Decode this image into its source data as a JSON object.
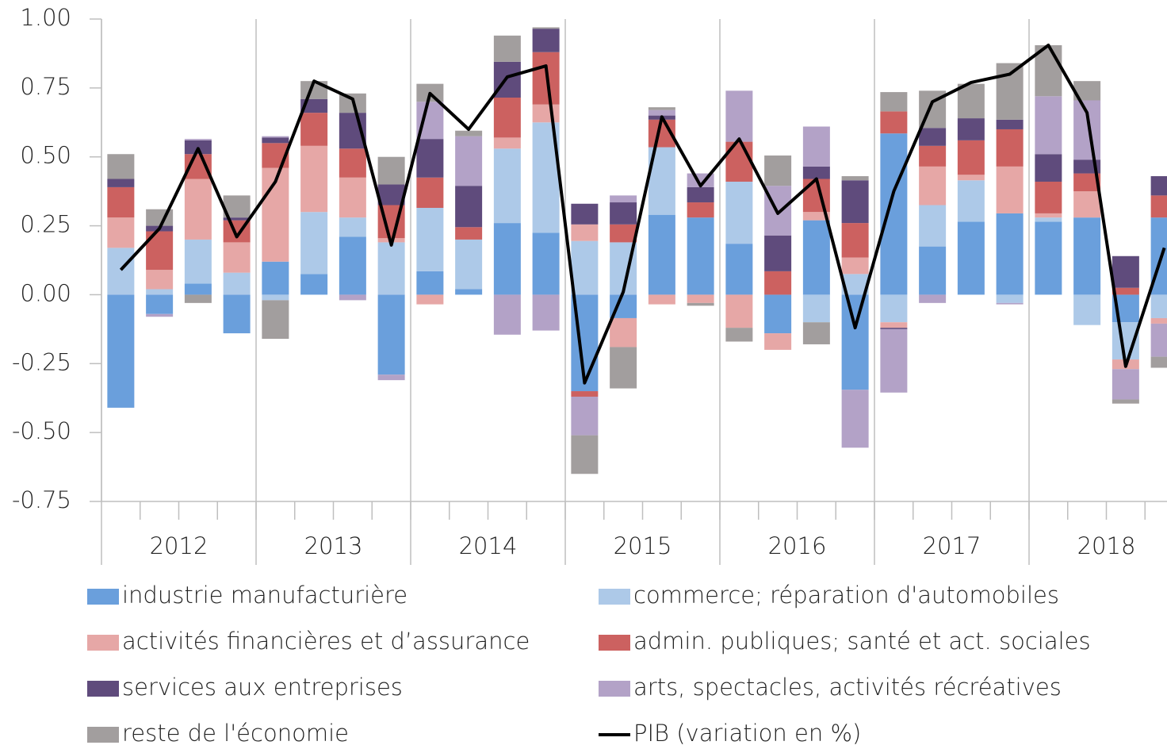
{
  "chart_data": {
    "type": "bar",
    "stacked": true,
    "categories": [
      null,
      null,
      null,
      null,
      null,
      null,
      null,
      null,
      null,
      null,
      null,
      null,
      null,
      null,
      null,
      null,
      null,
      null,
      null,
      null,
      null,
      null,
      null,
      null,
      null,
      null,
      null,
      null
    ],
    "year_labels": [
      "2012",
      "2013",
      "2014",
      "2015",
      "2016",
      "2017",
      "2018"
    ],
    "ylim": [
      -0.75,
      1.0
    ],
    "yticks": [
      {
        "value": 1.0,
        "label": "1.00"
      },
      {
        "value": 0.75,
        "label": "0.75"
      },
      {
        "value": 0.5,
        "label": "0.50"
      },
      {
        "value": 0.25,
        "label": "0.25"
      },
      {
        "value": 0,
        "label": "0.00"
      },
      {
        "value": -0.25,
        "label": "-0.25"
      },
      {
        "value": -0.5,
        "label": "-0.50"
      },
      {
        "value": -0.75,
        "label": "-0.75"
      }
    ],
    "series": [
      {
        "name": "industrie manufacturière",
        "color": "#6a9fdc",
        "values": [
          -0.41,
          -0.07,
          0.04,
          -0.14,
          0.12,
          0.075,
          0.21,
          -0.29,
          0.085,
          0.02,
          0.26,
          0.225,
          -0.35,
          -0.085,
          0.29,
          0.28,
          0.185,
          -0.14,
          0.27,
          -0.345,
          0.585,
          0.175,
          0.265,
          0.295,
          0.265,
          0.28,
          -0.1,
          0.28
        ]
      },
      {
        "name": "commerce; réparation d'automobiles",
        "color": "#adc9e8",
        "values": [
          0.17,
          0.02,
          0.16,
          0.08,
          -0.02,
          0.225,
          0.07,
          0.19,
          0.23,
          0.18,
          0.27,
          0.4,
          0.195,
          0.19,
          0.245,
          0,
          0.225,
          0,
          -0.1,
          0.075,
          -0.1,
          0.15,
          0.15,
          -0.03,
          0.015,
          -0.11,
          -0.135,
          -0.085
        ]
      },
      {
        "name": "activités financières et d’assurance",
        "color": "#e6a7a6",
        "values": [
          0.11,
          0.07,
          0.22,
          0.11,
          0.34,
          0.24,
          0.145,
          0.015,
          -0.035,
          0,
          0.04,
          0.065,
          0.06,
          -0.105,
          -0.035,
          -0.03,
          -0.12,
          -0.06,
          0.03,
          0.06,
          -0.02,
          0.14,
          0.02,
          0.17,
          0.015,
          0.095,
          -0.035,
          -0.02
        ]
      },
      {
        "name": "admin. publiques; santé et act. sociales",
        "color": "#cc6160",
        "values": [
          0.11,
          0.14,
          0.09,
          0.08,
          0.09,
          0.12,
          0.105,
          0.12,
          0.11,
          0.045,
          0.145,
          0.19,
          -0.02,
          0.065,
          0.1,
          0.055,
          0.145,
          0.085,
          0.12,
          0.125,
          0.08,
          0.075,
          0.125,
          0.135,
          0.115,
          0.065,
          0.025,
          0.08
        ]
      },
      {
        "name": "services aux entreprises",
        "color": "#5f4b7c",
        "values": [
          0.03,
          0.02,
          0.05,
          0.01,
          0.02,
          0.05,
          0.13,
          0.075,
          0.14,
          0.15,
          0.13,
          0.085,
          0.075,
          0.08,
          0.015,
          0.055,
          0,
          0.13,
          0.045,
          0.155,
          -0.005,
          0.065,
          0.08,
          0.035,
          0.1,
          0.05,
          0.115,
          0.07
        ]
      },
      {
        "name": "arts, spectacles, activités récréatives",
        "color": "#b3a2c7",
        "values": [
          0,
          -0.01,
          0.005,
          0,
          0.005,
          0,
          -0.02,
          -0.02,
          0.135,
          0.18,
          -0.145,
          -0.13,
          -0.14,
          0.025,
          0.02,
          0.05,
          0.185,
          0.18,
          0.145,
          -0.21,
          -0.23,
          -0.03,
          0,
          -0.005,
          0.21,
          0.215,
          -0.11,
          -0.12
        ]
      },
      {
        "name": "reste de l'économie",
        "color": "#a29e9e",
        "values": [
          0.09,
          0.06,
          -0.03,
          0.08,
          -0.14,
          0.065,
          0.07,
          0.1,
          0.065,
          0.02,
          0.095,
          0.005,
          -0.14,
          -0.15,
          0.01,
          -0.01,
          -0.05,
          0.11,
          -0.08,
          0.015,
          0.07,
          0.135,
          0.125,
          0.205,
          0.185,
          0.07,
          -0.015,
          -0.04
        ]
      },
      {
        "name": "PIB (variation en %)",
        "type": "line",
        "color": "#000000",
        "values": [
          0.09,
          0.24,
          0.53,
          0.21,
          0.41,
          0.775,
          0.71,
          0.18,
          0.73,
          0.6,
          0.79,
          0.83,
          -0.32,
          0.01,
          0.645,
          0.395,
          0.565,
          0.295,
          0.42,
          -0.12,
          0.375,
          0.7,
          0.77,
          0.8,
          0.905,
          0.66,
          -0.26,
          0.17
        ]
      }
    ]
  }
}
